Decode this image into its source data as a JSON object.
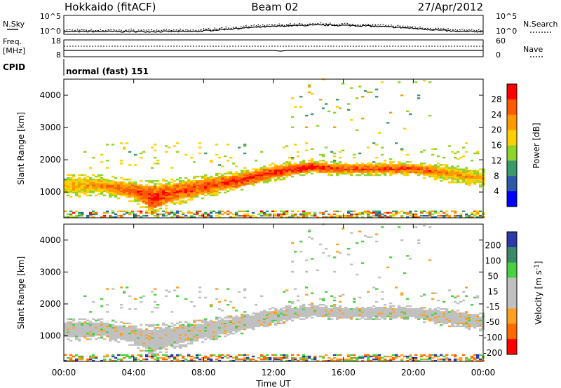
{
  "header": {
    "left": "Hokkaido (fitACF)",
    "center": "Beam 02",
    "right": "27/Apr/2012"
  },
  "noise_panel": {
    "left_label": "N.Sky",
    "right_label": "N.Search",
    "left_ticks": [
      "10^5",
      "10^0"
    ],
    "right_ticks": [
      "10^5",
      "10^0"
    ]
  },
  "freq_panel": {
    "left_label_1": "Freq.",
    "left_label_2": "[MHz]",
    "right_label": "Nave",
    "left_ticks": [
      "18",
      "8"
    ],
    "right_ticks": [
      "60",
      "0"
    ]
  },
  "cpid_panel": {
    "label": "CPID",
    "text": "normal (fast) 151"
  },
  "x_axis": {
    "label": "Time UT",
    "ticks": [
      "00:00",
      "04:00",
      "08:00",
      "12:00",
      "16:00",
      "20:00",
      "00:00"
    ]
  },
  "power_colorbar": {
    "label": "Power [dB]",
    "ticks": [
      "28",
      "24",
      "20",
      "16",
      "12",
      "8",
      "4"
    ],
    "colors": [
      "#ff0000",
      "#ff5a00",
      "#ff9a00",
      "#ffd000",
      "#8ed42a",
      "#3a9a6a",
      "#2a5aa8",
      "#0000ff"
    ]
  },
  "velocity_colorbar": {
    "label": "Velocity [m s",
    "label_sup": "-1",
    "label_end": "]",
    "ticks": [
      "200",
      "100",
      "50",
      "15",
      "-15",
      "-50",
      "-100",
      "-200"
    ],
    "colors": [
      "#2a3aa8",
      "#3a8a6a",
      "#4ad040",
      "#c0c0c0",
      "#c0c0c0",
      "#ffa020",
      "#ff6a00",
      "#ff0000"
    ]
  },
  "chart_data": [
    {
      "type": "heatmap",
      "title": "",
      "xlabel": "Time UT",
      "ylabel": "Slant Range [km]",
      "x_ticks": [
        "00:00",
        "04:00",
        "08:00",
        "12:00",
        "16:00",
        "20:00",
        "00:00"
      ],
      "y_ticks": [
        1000,
        2000,
        3000,
        4000
      ],
      "ylim": [
        200,
        4500
      ],
      "colorbar_label": "Power [dB]",
      "colorbar_ticks": [
        4,
        8,
        12,
        16,
        20,
        24,
        28
      ],
      "echo_band": {
        "hours": [
          0,
          2,
          4,
          5,
          6,
          8,
          10,
          12,
          14,
          16,
          18,
          20,
          22,
          24
        ],
        "center_km": [
          1150,
          1200,
          1000,
          800,
          950,
          1150,
          1350,
          1600,
          1750,
          1700,
          1700,
          1700,
          1550,
          1400
        ],
        "width_km": [
          450,
          400,
          450,
          700,
          550,
          450,
          400,
          350,
          300,
          250,
          250,
          300,
          350,
          350
        ],
        "power_db": [
          20,
          22,
          26,
          28,
          26,
          26,
          27,
          27,
          28,
          26,
          26,
          25,
          22,
          20
        ]
      }
    },
    {
      "type": "heatmap",
      "title": "",
      "xlabel": "Time UT",
      "ylabel": "Slant Range [km]",
      "x_ticks": [
        "00:00",
        "04:00",
        "08:00",
        "12:00",
        "16:00",
        "20:00",
        "00:00"
      ],
      "y_ticks": [
        1000,
        2000,
        3000,
        4000
      ],
      "ylim": [
        200,
        4500
      ],
      "colorbar_label": "Velocity [m s-1]",
      "colorbar_ticks": [
        -200,
        -100,
        -50,
        -15,
        15,
        50,
        100,
        200
      ],
      "dominant_velocity_ms": 0
    }
  ]
}
